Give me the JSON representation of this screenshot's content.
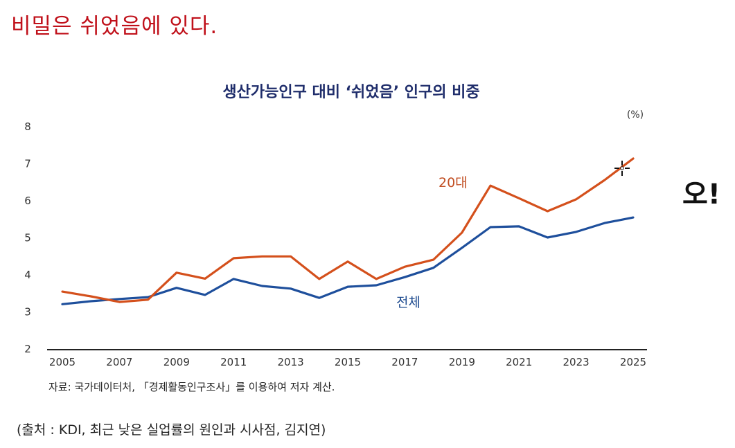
{
  "slide": {
    "headline": "비밀은 쉬었음에 있다.",
    "exclamation": "오!",
    "source_note": "(출처 : KDI, 최근 낮은 실업률의 원인과 시사점, 김지연)"
  },
  "chart_data": {
    "type": "line",
    "title": "생산가능인구 대비 ‘쉬었음’ 인구의 비중",
    "unit_label": "(%)",
    "xlabel": "",
    "ylabel": "",
    "x": [
      2005,
      2006,
      2007,
      2008,
      2009,
      2010,
      2011,
      2012,
      2013,
      2014,
      2015,
      2016,
      2017,
      2018,
      2019,
      2020,
      2021,
      2022,
      2023,
      2024,
      2025
    ],
    "x_tick_labels": [
      "2005",
      "2007",
      "2009",
      "2011",
      "2013",
      "2015",
      "2017",
      "2019",
      "2021",
      "2023",
      "2025"
    ],
    "y_tick_labels": [
      "2",
      "3",
      "4",
      "5",
      "6",
      "7",
      "8"
    ],
    "ylim": [
      2,
      8
    ],
    "xlim": [
      2005,
      2025
    ],
    "grid": false,
    "series": [
      {
        "name": "20대",
        "color": "#d4501c",
        "values": [
          3.55,
          3.42,
          3.27,
          3.33,
          4.06,
          3.9,
          4.45,
          4.5,
          4.5,
          3.89,
          4.36,
          3.89,
          4.22,
          4.41,
          5.14,
          6.41,
          6.07,
          5.72,
          6.04,
          6.56,
          7.14
        ]
      },
      {
        "name": "전체",
        "color": "#1e4f9c",
        "values": [
          3.21,
          3.29,
          3.35,
          3.4,
          3.65,
          3.46,
          3.89,
          3.7,
          3.63,
          3.38,
          3.68,
          3.72,
          3.94,
          4.19,
          4.73,
          5.29,
          5.31,
          5.01,
          5.16,
          5.4,
          5.55
        ]
      }
    ],
    "caption": "자료: 국가데이터처, 「경제활동인구조사」를 이용하여 저자 계산.",
    "axis_color": "#222222"
  }
}
